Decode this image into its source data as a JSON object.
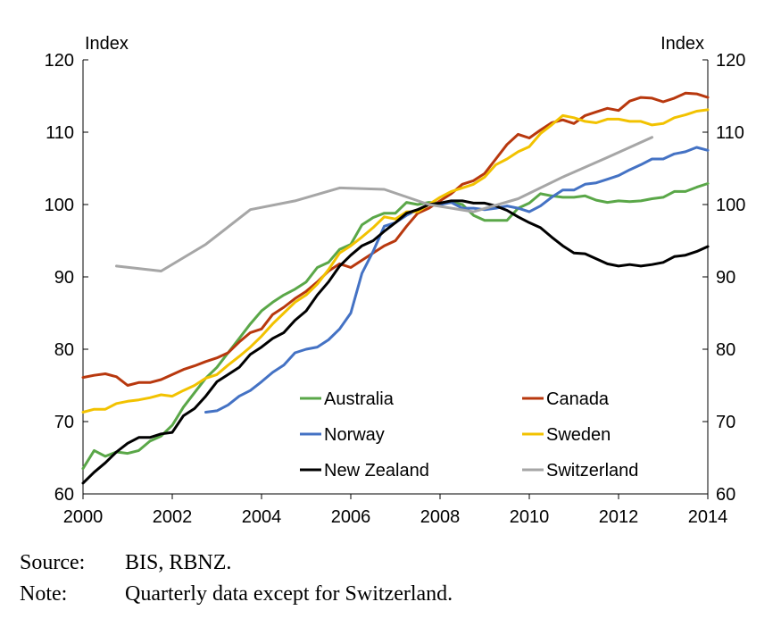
{
  "chart_data": {
    "type": "line",
    "ylabel_left": "Index",
    "ylabel_right": "Index",
    "ylim": [
      60,
      120
    ],
    "xlim": [
      2000,
      2014
    ],
    "yticks": [
      "60",
      "70",
      "80",
      "90",
      "100",
      "110",
      "120"
    ],
    "xticks": [
      "2000",
      "2002",
      "2004",
      "2006",
      "2008",
      "2010",
      "2012",
      "2014"
    ],
    "grid": false,
    "legend_position": "inside-bottom",
    "series": [
      {
        "name": "Australia",
        "color": "#5aa748",
        "points": [
          [
            2000.0,
            63.5
          ],
          [
            2000.25,
            66.0
          ],
          [
            2000.5,
            65.2
          ],
          [
            2000.75,
            65.8
          ],
          [
            2001.0,
            65.6
          ],
          [
            2001.25,
            66.0
          ],
          [
            2001.5,
            67.3
          ],
          [
            2001.75,
            68.0
          ],
          [
            2002.0,
            69.5
          ],
          [
            2002.25,
            72.0
          ],
          [
            2002.5,
            74.0
          ],
          [
            2002.75,
            76.0
          ],
          [
            2003.0,
            77.5
          ],
          [
            2003.25,
            79.5
          ],
          [
            2003.5,
            81.5
          ],
          [
            2003.75,
            83.5
          ],
          [
            2004.0,
            85.3
          ],
          [
            2004.25,
            86.5
          ],
          [
            2004.5,
            87.5
          ],
          [
            2004.75,
            88.3
          ],
          [
            2005.0,
            89.3
          ],
          [
            2005.25,
            91.3
          ],
          [
            2005.5,
            92.0
          ],
          [
            2005.75,
            93.8
          ],
          [
            2006.0,
            94.5
          ],
          [
            2006.25,
            97.2
          ],
          [
            2006.5,
            98.2
          ],
          [
            2006.75,
            98.8
          ],
          [
            2007.0,
            98.8
          ],
          [
            2007.25,
            100.3
          ],
          [
            2007.5,
            100.0
          ],
          [
            2007.75,
            100.3
          ],
          [
            2008.0,
            100.2
          ],
          [
            2008.25,
            100.3
          ],
          [
            2008.5,
            100.0
          ],
          [
            2008.75,
            98.5
          ],
          [
            2009.0,
            97.8
          ],
          [
            2009.25,
            97.8
          ],
          [
            2009.5,
            97.8
          ],
          [
            2009.75,
            99.5
          ],
          [
            2010.0,
            100.2
          ],
          [
            2010.25,
            101.5
          ],
          [
            2010.5,
            101.2
          ],
          [
            2010.75,
            101.0
          ],
          [
            2011.0,
            101.0
          ],
          [
            2011.25,
            101.2
          ],
          [
            2011.5,
            100.6
          ],
          [
            2011.75,
            100.3
          ],
          [
            2012.0,
            100.5
          ],
          [
            2012.25,
            100.4
          ],
          [
            2012.5,
            100.5
          ],
          [
            2012.75,
            100.8
          ],
          [
            2013.0,
            101.0
          ],
          [
            2013.25,
            101.8
          ],
          [
            2013.5,
            101.8
          ],
          [
            2013.75,
            102.4
          ],
          [
            2014.0,
            102.9
          ]
        ]
      },
      {
        "name": "Canada",
        "color": "#b8380e",
        "points": [
          [
            2000.0,
            76.1
          ],
          [
            2000.25,
            76.4
          ],
          [
            2000.5,
            76.6
          ],
          [
            2000.75,
            76.2
          ],
          [
            2001.0,
            75.0
          ],
          [
            2001.25,
            75.4
          ],
          [
            2001.5,
            75.4
          ],
          [
            2001.75,
            75.8
          ],
          [
            2002.0,
            76.5
          ],
          [
            2002.25,
            77.2
          ],
          [
            2002.5,
            77.7
          ],
          [
            2002.75,
            78.3
          ],
          [
            2003.0,
            78.8
          ],
          [
            2003.25,
            79.5
          ],
          [
            2003.5,
            81.0
          ],
          [
            2003.75,
            82.3
          ],
          [
            2004.0,
            82.8
          ],
          [
            2004.25,
            84.8
          ],
          [
            2004.5,
            85.8
          ],
          [
            2004.75,
            87.0
          ],
          [
            2005.0,
            88.0
          ],
          [
            2005.25,
            89.3
          ],
          [
            2005.5,
            90.8
          ],
          [
            2005.75,
            91.8
          ],
          [
            2006.0,
            91.3
          ],
          [
            2006.25,
            92.3
          ],
          [
            2006.5,
            93.3
          ],
          [
            2006.75,
            94.3
          ],
          [
            2007.0,
            95.0
          ],
          [
            2007.25,
            97.0
          ],
          [
            2007.5,
            98.8
          ],
          [
            2007.75,
            99.5
          ],
          [
            2008.0,
            100.5
          ],
          [
            2008.25,
            101.5
          ],
          [
            2008.5,
            102.8
          ],
          [
            2008.75,
            103.3
          ],
          [
            2009.0,
            104.3
          ],
          [
            2009.25,
            106.3
          ],
          [
            2009.5,
            108.3
          ],
          [
            2009.75,
            109.7
          ],
          [
            2010.0,
            109.2
          ],
          [
            2010.25,
            110.3
          ],
          [
            2010.5,
            111.3
          ],
          [
            2010.75,
            111.7
          ],
          [
            2011.0,
            111.2
          ],
          [
            2011.25,
            112.3
          ],
          [
            2011.5,
            112.8
          ],
          [
            2011.75,
            113.3
          ],
          [
            2012.0,
            113.0
          ],
          [
            2012.25,
            114.3
          ],
          [
            2012.5,
            114.8
          ],
          [
            2012.75,
            114.7
          ],
          [
            2013.0,
            114.2
          ],
          [
            2013.25,
            114.7
          ],
          [
            2013.5,
            115.4
          ],
          [
            2013.75,
            115.3
          ],
          [
            2014.0,
            114.8
          ]
        ]
      },
      {
        "name": "Norway",
        "color": "#4472c4",
        "points": [
          [
            2002.75,
            71.3
          ],
          [
            2003.0,
            71.5
          ],
          [
            2003.25,
            72.3
          ],
          [
            2003.5,
            73.5
          ],
          [
            2003.75,
            74.3
          ],
          [
            2004.0,
            75.5
          ],
          [
            2004.25,
            76.8
          ],
          [
            2004.5,
            77.8
          ],
          [
            2004.75,
            79.5
          ],
          [
            2005.0,
            80.0
          ],
          [
            2005.25,
            80.3
          ],
          [
            2005.5,
            81.3
          ],
          [
            2005.75,
            82.8
          ],
          [
            2006.0,
            85.0
          ],
          [
            2006.25,
            90.5
          ],
          [
            2006.5,
            93.5
          ],
          [
            2006.75,
            97.0
          ],
          [
            2007.0,
            97.5
          ],
          [
            2007.25,
            98.5
          ],
          [
            2007.5,
            99.3
          ],
          [
            2007.75,
            100.0
          ],
          [
            2008.0,
            100.0
          ],
          [
            2008.25,
            100.3
          ],
          [
            2008.5,
            99.5
          ],
          [
            2008.75,
            99.5
          ],
          [
            2009.0,
            99.3
          ],
          [
            2009.25,
            99.5
          ],
          [
            2009.5,
            99.8
          ],
          [
            2009.75,
            99.5
          ],
          [
            2010.0,
            99.0
          ],
          [
            2010.25,
            99.8
          ],
          [
            2010.5,
            101.0
          ],
          [
            2010.75,
            102.0
          ],
          [
            2011.0,
            102.0
          ],
          [
            2011.25,
            102.8
          ],
          [
            2011.5,
            103.0
          ],
          [
            2011.75,
            103.5
          ],
          [
            2012.0,
            104.0
          ],
          [
            2012.25,
            104.8
          ],
          [
            2012.5,
            105.5
          ],
          [
            2012.75,
            106.3
          ],
          [
            2013.0,
            106.3
          ],
          [
            2013.25,
            107.0
          ],
          [
            2013.5,
            107.3
          ],
          [
            2013.75,
            107.9
          ],
          [
            2014.0,
            107.5
          ]
        ]
      },
      {
        "name": "Sweden",
        "color": "#f2c200",
        "points": [
          [
            2000.0,
            71.3
          ],
          [
            2000.25,
            71.7
          ],
          [
            2000.5,
            71.7
          ],
          [
            2000.75,
            72.5
          ],
          [
            2001.0,
            72.8
          ],
          [
            2001.25,
            73.0
          ],
          [
            2001.5,
            73.3
          ],
          [
            2001.75,
            73.7
          ],
          [
            2002.0,
            73.5
          ],
          [
            2002.25,
            74.3
          ],
          [
            2002.5,
            75.0
          ],
          [
            2002.75,
            76.0
          ],
          [
            2003.0,
            76.5
          ],
          [
            2003.25,
            77.8
          ],
          [
            2003.5,
            79.0
          ],
          [
            2003.75,
            80.3
          ],
          [
            2004.0,
            81.8
          ],
          [
            2004.25,
            83.5
          ],
          [
            2004.5,
            85.0
          ],
          [
            2004.75,
            86.5
          ],
          [
            2005.0,
            87.5
          ],
          [
            2005.25,
            89.0
          ],
          [
            2005.5,
            91.0
          ],
          [
            2005.75,
            93.3
          ],
          [
            2006.0,
            94.3
          ],
          [
            2006.25,
            95.5
          ],
          [
            2006.5,
            96.8
          ],
          [
            2006.75,
            98.3
          ],
          [
            2007.0,
            98.0
          ],
          [
            2007.25,
            99.0
          ],
          [
            2007.5,
            99.0
          ],
          [
            2007.75,
            100.0
          ],
          [
            2008.0,
            101.0
          ],
          [
            2008.25,
            101.8
          ],
          [
            2008.5,
            102.3
          ],
          [
            2008.75,
            102.8
          ],
          [
            2009.0,
            103.8
          ],
          [
            2009.25,
            105.5
          ],
          [
            2009.5,
            106.3
          ],
          [
            2009.75,
            107.3
          ],
          [
            2010.0,
            108.0
          ],
          [
            2010.25,
            109.8
          ],
          [
            2010.5,
            111.0
          ],
          [
            2010.75,
            112.3
          ],
          [
            2011.0,
            112.0
          ],
          [
            2011.25,
            111.5
          ],
          [
            2011.5,
            111.3
          ],
          [
            2011.75,
            111.8
          ],
          [
            2012.0,
            111.8
          ],
          [
            2012.25,
            111.5
          ],
          [
            2012.5,
            111.5
          ],
          [
            2012.75,
            111.0
          ],
          [
            2013.0,
            111.2
          ],
          [
            2013.25,
            112.0
          ],
          [
            2013.5,
            112.4
          ],
          [
            2013.75,
            112.9
          ],
          [
            2014.0,
            113.1
          ]
        ]
      },
      {
        "name": "New Zealand",
        "color": "#000000",
        "points": [
          [
            2000.0,
            61.5
          ],
          [
            2000.25,
            63.0
          ],
          [
            2000.5,
            64.3
          ],
          [
            2000.75,
            65.8
          ],
          [
            2001.0,
            67.0
          ],
          [
            2001.25,
            67.8
          ],
          [
            2001.5,
            67.8
          ],
          [
            2001.75,
            68.3
          ],
          [
            2002.0,
            68.5
          ],
          [
            2002.25,
            70.8
          ],
          [
            2002.5,
            71.8
          ],
          [
            2002.75,
            73.5
          ],
          [
            2003.0,
            75.5
          ],
          [
            2003.25,
            76.5
          ],
          [
            2003.5,
            77.5
          ],
          [
            2003.75,
            79.3
          ],
          [
            2004.0,
            80.3
          ],
          [
            2004.25,
            81.5
          ],
          [
            2004.5,
            82.3
          ],
          [
            2004.75,
            84.0
          ],
          [
            2005.0,
            85.3
          ],
          [
            2005.25,
            87.5
          ],
          [
            2005.5,
            89.3
          ],
          [
            2005.75,
            91.5
          ],
          [
            2006.0,
            93.0
          ],
          [
            2006.25,
            94.3
          ],
          [
            2006.5,
            95.0
          ],
          [
            2006.75,
            96.3
          ],
          [
            2007.0,
            97.5
          ],
          [
            2007.25,
            98.8
          ],
          [
            2007.5,
            99.3
          ],
          [
            2007.75,
            100.0
          ],
          [
            2008.0,
            100.2
          ],
          [
            2008.25,
            100.5
          ],
          [
            2008.5,
            100.5
          ],
          [
            2008.75,
            100.2
          ],
          [
            2009.0,
            100.2
          ],
          [
            2009.25,
            99.8
          ],
          [
            2009.5,
            99.2
          ],
          [
            2009.75,
            98.3
          ],
          [
            2010.0,
            97.5
          ],
          [
            2010.25,
            96.8
          ],
          [
            2010.5,
            95.5
          ],
          [
            2010.75,
            94.3
          ],
          [
            2011.0,
            93.3
          ],
          [
            2011.25,
            93.2
          ],
          [
            2011.5,
            92.5
          ],
          [
            2011.75,
            91.8
          ],
          [
            2012.0,
            91.5
          ],
          [
            2012.25,
            91.7
          ],
          [
            2012.5,
            91.5
          ],
          [
            2012.75,
            91.7
          ],
          [
            2013.0,
            92.0
          ],
          [
            2013.25,
            92.8
          ],
          [
            2013.5,
            93.0
          ],
          [
            2013.75,
            93.5
          ],
          [
            2014.0,
            94.2
          ]
        ]
      },
      {
        "name": "Switzerland",
        "color": "#a6a6a6",
        "points": [
          [
            2000.75,
            91.5
          ],
          [
            2001.75,
            90.8
          ],
          [
            2002.75,
            94.5
          ],
          [
            2003.75,
            99.3
          ],
          [
            2004.75,
            100.5
          ],
          [
            2005.75,
            102.3
          ],
          [
            2006.75,
            102.1
          ],
          [
            2007.75,
            100.0
          ],
          [
            2008.75,
            99.0
          ],
          [
            2009.75,
            100.8
          ],
          [
            2010.75,
            103.8
          ],
          [
            2011.75,
            106.5
          ],
          [
            2012.75,
            109.3
          ]
        ]
      }
    ]
  },
  "notes": [
    {
      "label": "Source:",
      "text": "BIS, RBNZ."
    },
    {
      "label": "Note:",
      "text": "Quarterly data except for Switzerland."
    }
  ]
}
